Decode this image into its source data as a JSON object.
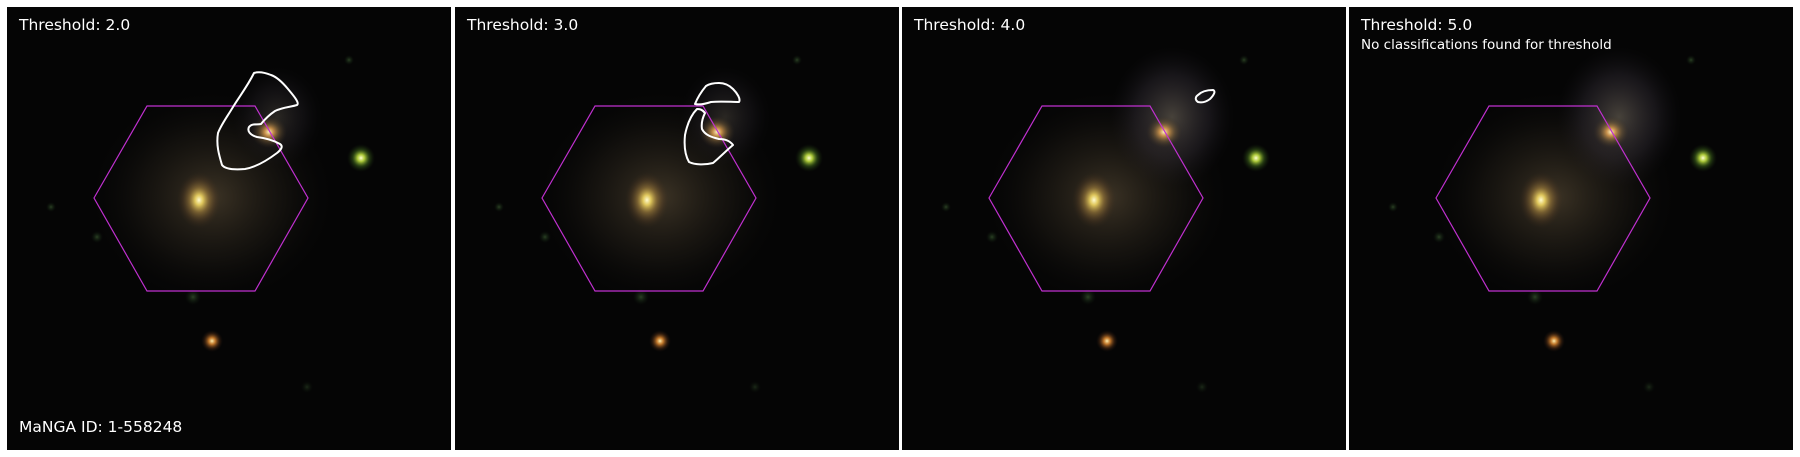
{
  "panels": [
    {
      "title": "Threshold: 2.0",
      "note": "",
      "footer": "MaNGA ID: 1-558248",
      "contour": "large"
    },
    {
      "title": "Threshold: 3.0",
      "note": "",
      "footer": "",
      "contour": "medium"
    },
    {
      "title": "Threshold: 4.0",
      "note": "",
      "footer": "",
      "contour": "small"
    },
    {
      "title": "Threshold: 5.0",
      "note": "No classifications found for threshold",
      "footer": "",
      "contour": "none"
    }
  ],
  "colors": {
    "hexagon": "#c030d0",
    "contour": "#ffffff",
    "background": "#050505"
  }
}
